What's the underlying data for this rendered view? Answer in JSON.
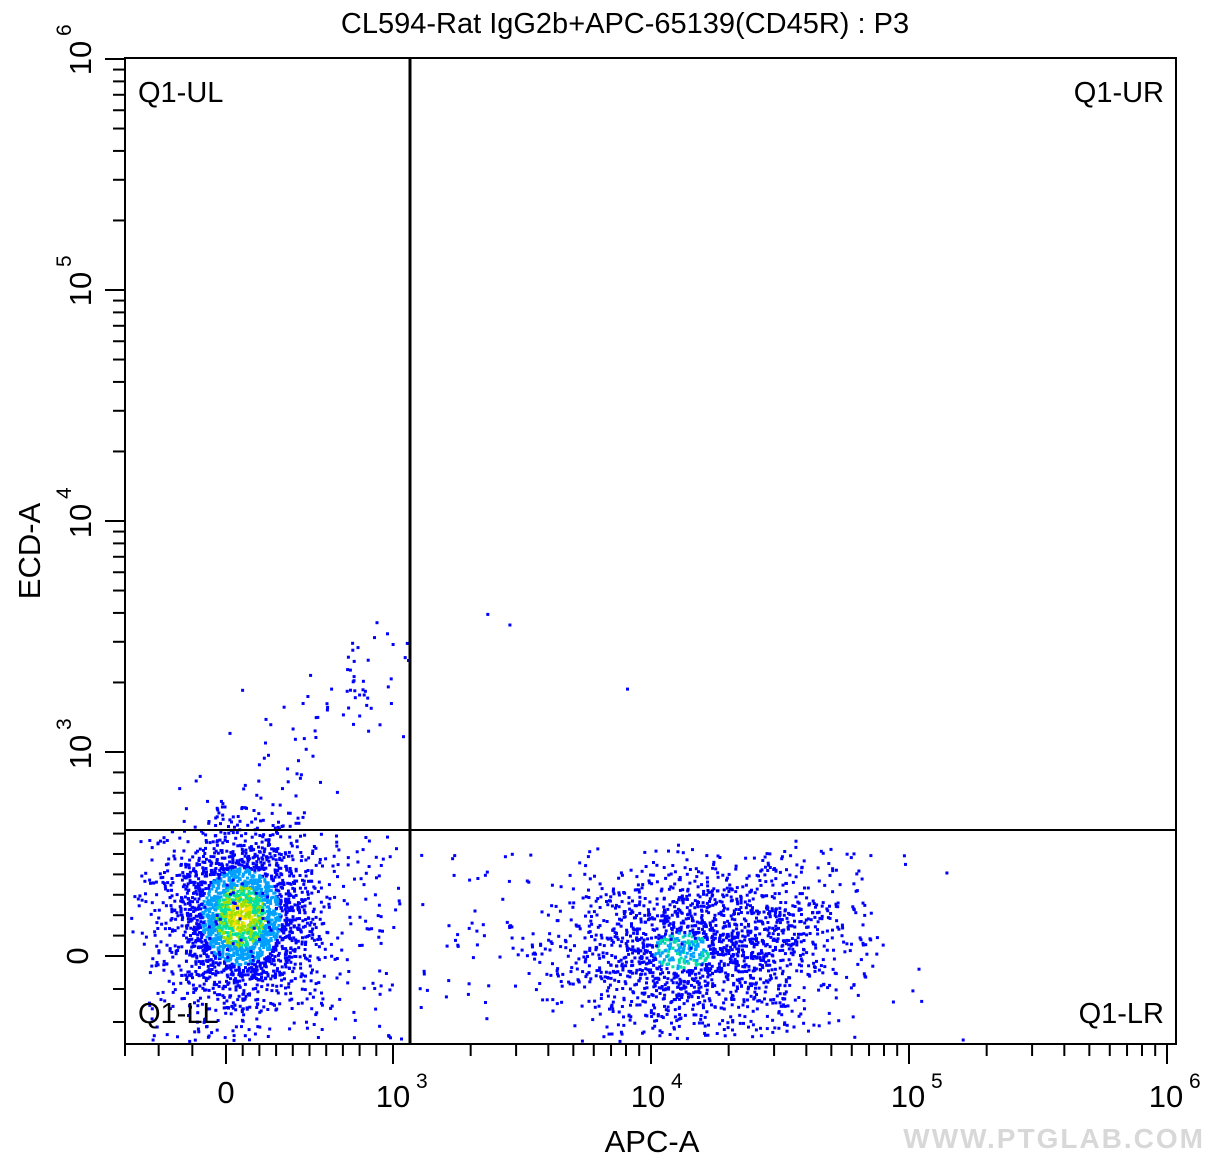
{
  "chart_data": {
    "type": "scatter",
    "title": "CL594-Rat IgG2b+APC-65139(CD45R) : P3",
    "xlabel": "APC-A",
    "ylabel": "ECD-A",
    "x_scale": "biexponential",
    "y_scale": "biexponential",
    "x_ticks": [
      {
        "value": 0,
        "base": "0",
        "exp": ""
      },
      {
        "value": 1000,
        "base": "10",
        "exp": "3"
      },
      {
        "value": 10000,
        "base": "10",
        "exp": "4"
      },
      {
        "value": 100000,
        "base": "10",
        "exp": "5"
      },
      {
        "value": 1000000,
        "base": "10",
        "exp": "6"
      }
    ],
    "y_ticks": [
      {
        "value": 0,
        "base": "0",
        "exp": ""
      },
      {
        "value": 1000,
        "base": "10",
        "exp": "3"
      },
      {
        "value": 10000,
        "base": "10",
        "exp": "4"
      },
      {
        "value": 100000,
        "base": "10",
        "exp": "5"
      },
      {
        "value": 1000000,
        "base": "10",
        "exp": "6"
      }
    ],
    "quadrant_gate": {
      "x": 1200,
      "y": 600
    },
    "quadrants": [
      {
        "name": "Q1-UL",
        "position": "top-left"
      },
      {
        "name": "Q1-UR",
        "position": "top-right"
      },
      {
        "name": "Q1-LL",
        "position": "bottom-left"
      },
      {
        "name": "Q1-LR",
        "position": "bottom-right"
      }
    ],
    "populations": [
      {
        "description": "CD45R-negative cluster",
        "x_center": 80,
        "y_center": 200,
        "approx_events": 2400
      },
      {
        "description": "CD45R-positive cluster",
        "x_center": 13000,
        "y_center": 30,
        "approx_events": 1500
      }
    ],
    "outliers": [
      [
        2300,
        4000
      ],
      [
        2800,
        3600
      ],
      [
        8000,
        1900
      ],
      [
        36000,
        570
      ],
      [
        160000,
        -250
      ],
      [
        750,
        2800
      ],
      [
        1100,
        2600
      ]
    ],
    "density_colors": [
      "#0000ff",
      "#00a0ff",
      "#00e0a0",
      "#a0e000",
      "#ffe000",
      "#ff2000"
    ]
  },
  "watermark": "WWW.PTGLAB.COM"
}
